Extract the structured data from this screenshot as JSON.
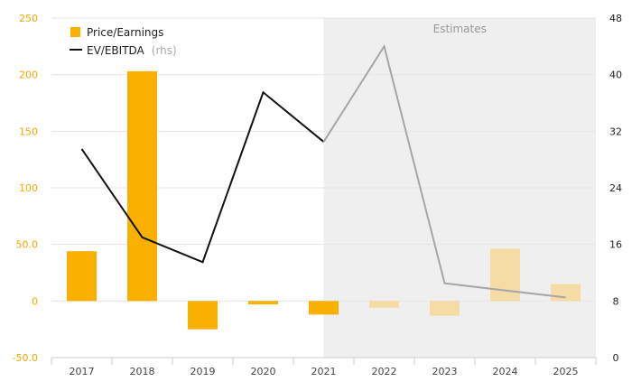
{
  "chart_data": {
    "type": "bar",
    "categories": [
      "2017",
      "2018",
      "2019",
      "2020",
      "2021",
      "2022",
      "2023",
      "2024",
      "2025"
    ],
    "series": [
      {
        "name": "Price/Earnings",
        "type": "bar",
        "axis": "left",
        "values": [
          44,
          203,
          -25,
          -3,
          -12,
          -6,
          -13,
          46,
          15
        ],
        "color": "#f9b000",
        "estimate_color": "#f4dca4"
      },
      {
        "name": "EV/EBITDA",
        "name_suffix": "(rhs)",
        "type": "line",
        "axis": "right",
        "values": [
          29.5,
          17,
          13.5,
          37.5,
          30.5,
          44,
          10.5,
          9.5,
          8.5
        ],
        "color": "#111111",
        "estimate_color": "#a6a6a6"
      }
    ],
    "y_left": {
      "ylim": [
        -50,
        250
      ],
      "ticks": [
        -50,
        0,
        50,
        100,
        150,
        200,
        250
      ],
      "tick_labels": [
        "-50.0",
        "0",
        "50.0",
        "100",
        "150",
        "200",
        "250"
      ]
    },
    "y_right": {
      "ylim": [
        0,
        48
      ],
      "ticks": [
        0,
        8,
        16,
        24,
        32,
        40,
        48
      ],
      "tick_labels": [
        "0",
        "8",
        "16",
        "24",
        "32",
        "40",
        "48"
      ]
    },
    "estimates": {
      "label": "Estimates",
      "from_category_index": 4,
      "shade_color": "#efefef"
    },
    "grid": true,
    "legend_position": "top-left"
  }
}
